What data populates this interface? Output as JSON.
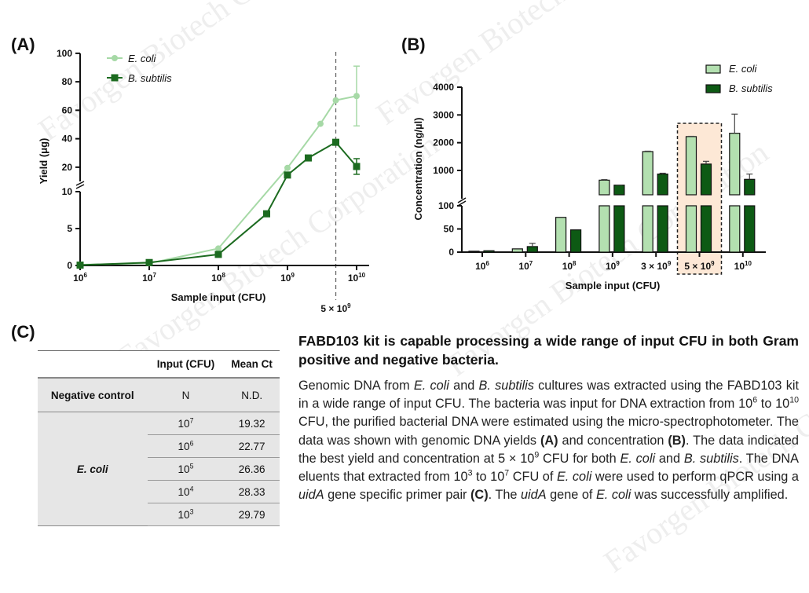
{
  "watermark": "Favorgen Biotech Corporation",
  "colors": {
    "ecoli_line": "#a6d9a6",
    "bsub_line": "#1c6b20",
    "ecoli_bar": "#b3e0b0",
    "bsub_bar": "#0d5a14",
    "highlight": "#fde8d6"
  },
  "chart_data": [
    {
      "panel": "(A)",
      "type": "line",
      "xlabel": "Sample input (CFU)",
      "ylabel": "Yield (μg)",
      "x_scale": "log",
      "xlim": [
        1000000,
        10000000000
      ],
      "y_axis_break": {
        "lower": [
          0,
          10
        ],
        "upper": [
          10,
          100
        ]
      },
      "y_ticks": [
        0,
        5,
        10,
        20,
        40,
        60,
        80,
        100
      ],
      "x_ticks": [
        {
          "value": 1000000,
          "base": "10",
          "sup": "6"
        },
        {
          "value": 10000000,
          "base": "10",
          "sup": "7"
        },
        {
          "value": 100000000,
          "base": "10",
          "sup": "8"
        },
        {
          "value": 1000000000,
          "base": "10",
          "sup": "9"
        },
        {
          "value": 10000000000,
          "base": "10",
          "sup": "10"
        }
      ],
      "reference_line": {
        "x": 5000000000,
        "label_base": "5 × 10",
        "label_sup": "9",
        "style": "dashed"
      },
      "legend": "top-left",
      "series": [
        {
          "name": "E. coli",
          "marker": "circle",
          "color": "#a6d9a6",
          "x": [
            1000000,
            10000000,
            100000000,
            1000000000,
            3000000000,
            5000000000,
            10000000000
          ],
          "y": [
            0.1,
            0.3,
            2.3,
            19.5,
            50.5,
            67,
            70
          ],
          "error": [
            0,
            0,
            0,
            0,
            0,
            0,
            21
          ]
        },
        {
          "name": "B. subtilis",
          "marker": "square",
          "color": "#1c6b20",
          "x": [
            1000000,
            10000000,
            100000000,
            500000000,
            1000000000,
            2000000000,
            5000000000,
            10000000000
          ],
          "y": [
            0.05,
            0.4,
            1.5,
            7,
            14.5,
            26.5,
            37.5,
            20.5
          ],
          "error": [
            0,
            0,
            0,
            0,
            0,
            0,
            1.5,
            5.5
          ]
        }
      ]
    },
    {
      "panel": "(B)",
      "type": "bar",
      "xlabel": "Sample input (CFU)",
      "ylabel": "Concentration (ng/µl)",
      "y_axis_break": {
        "lower": [
          0,
          100
        ],
        "upper": [
          100,
          4000
        ]
      },
      "y_ticks": [
        0,
        50,
        100,
        1000,
        2000,
        3000,
        4000
      ],
      "categories": [
        {
          "base": "10",
          "sup": "6"
        },
        {
          "base": "10",
          "sup": "7"
        },
        {
          "base": "10",
          "sup": "8"
        },
        {
          "base": "10",
          "sup": "9"
        },
        {
          "base": "3 × 10",
          "sup": "9"
        },
        {
          "base": "5 × 10",
          "sup": "9"
        },
        {
          "base": "10",
          "sup": "10"
        }
      ],
      "highlight_category": 5,
      "legend": "top-right",
      "series": [
        {
          "name": "E. coli",
          "color": "#b3e0b0",
          "values": [
            2,
            7,
            75,
            650,
            1680,
            2220,
            2340
          ],
          "error": [
            0,
            0,
            0,
            20,
            15,
            10,
            690
          ]
        },
        {
          "name": "B. subtilis",
          "color": "#0d5a14",
          "values": [
            3,
            12,
            48,
            470,
            870,
            1230,
            680
          ],
          "error": [
            0,
            7,
            0,
            5,
            30,
            100,
            190
          ]
        }
      ]
    }
  ],
  "table": {
    "panel": "(C)",
    "headers": [
      "",
      "Input (CFU)",
      "Mean Ct"
    ],
    "negative": {
      "label": "Negative control",
      "input": "N",
      "ct": "N.D."
    },
    "group": "E. coli",
    "rows": [
      {
        "base": "10",
        "sup": "7",
        "ct": "19.32"
      },
      {
        "base": "10",
        "sup": "6",
        "ct": "22.77"
      },
      {
        "base": "10",
        "sup": "5",
        "ct": "26.36"
      },
      {
        "base": "10",
        "sup": "4",
        "ct": "28.33"
      },
      {
        "base": "10",
        "sup": "3",
        "ct": "29.79"
      }
    ]
  },
  "description": {
    "title": "FABD103 kit is capable processing a wide range of input CFU in both Gram positive and negative bacteria.",
    "body": [
      {
        "t": "Genomic DNA from "
      },
      {
        "t": "E. coli",
        "i": true
      },
      {
        "t": " and "
      },
      {
        "t": "B. subtilis",
        "i": true
      },
      {
        "t": " cultures was extracted using the FABD103 kit in a wide range of input CFU. The bacteria was input for DNA extraction from 10"
      },
      {
        "t": "6",
        "sup": true
      },
      {
        "t": " to 10"
      },
      {
        "t": "10",
        "sup": true
      },
      {
        "t": " CFU, the purified bacterial DNA were estimated using the micro-spectrophotometer. The data was shown with genomic DNA yields "
      },
      {
        "t": "(A)",
        "b": true
      },
      {
        "t": " and concentration "
      },
      {
        "t": "(B)",
        "b": true
      },
      {
        "t": ". The data indicated the best yield and concentration at 5 × 10"
      },
      {
        "t": "9",
        "sup": true
      },
      {
        "t": " CFU for both "
      },
      {
        "t": "E. coli",
        "i": true
      },
      {
        "t": " and "
      },
      {
        "t": "B. subtilis",
        "i": true
      },
      {
        "t": ". The DNA eluents that extracted from 10"
      },
      {
        "t": "3",
        "sup": true
      },
      {
        "t": " to 10"
      },
      {
        "t": "7",
        "sup": true
      },
      {
        "t": " CFU of "
      },
      {
        "t": "E. coli",
        "i": true
      },
      {
        "t": " were used to perform qPCR using a "
      },
      {
        "t": "uidA",
        "i": true
      },
      {
        "t": " gene specific primer pair "
      },
      {
        "t": "(C)",
        "b": true
      },
      {
        "t": ". The "
      },
      {
        "t": "uidA",
        "i": true
      },
      {
        "t": " gene of "
      },
      {
        "t": "E. coli",
        "i": true
      },
      {
        "t": " was successfully amplified."
      }
    ]
  }
}
